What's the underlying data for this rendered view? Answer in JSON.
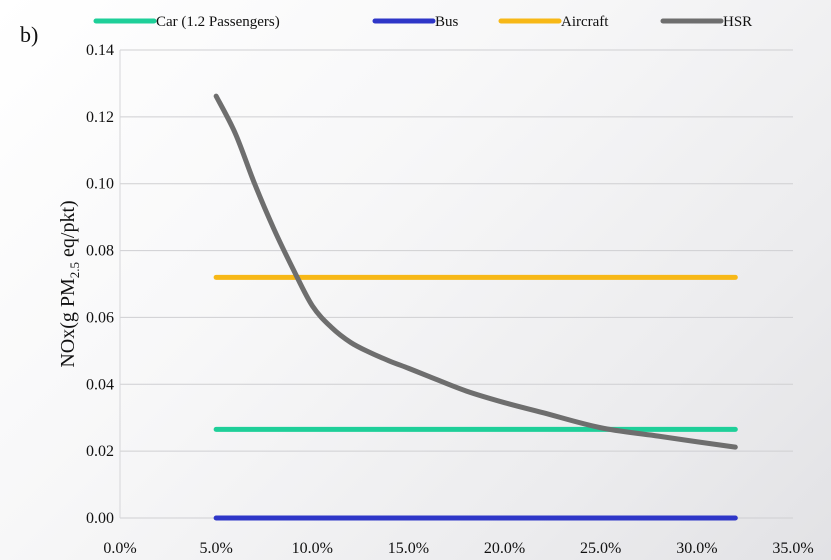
{
  "panel_label": "b)",
  "chart_data": {
    "type": "line",
    "ylabel_parts": [
      "NOx(g PM",
      "2.5",
      " eq/pkt)"
    ],
    "x_ticks": [
      "0.0%",
      "5.0%",
      "10.0%",
      "15.0%",
      "20.0%",
      "25.0%",
      "30.0%",
      "35.0%"
    ],
    "y_ticks": [
      "0.00",
      "0.02",
      "0.04",
      "0.06",
      "0.08",
      "0.10",
      "0.12",
      "0.14"
    ],
    "xlim": [
      0,
      35
    ],
    "ylim": [
      0,
      0.14
    ],
    "grid": "horizontal",
    "legend_position": "top",
    "series": [
      {
        "name": "Car (1.2 Passengers)",
        "color": "#1ecf99",
        "x": [
          5,
          32
        ],
        "y": [
          0.0265,
          0.0265
        ]
      },
      {
        "name": "Bus",
        "color": "#2e36c8",
        "x": [
          5,
          32
        ],
        "y": [
          0.0,
          0.0
        ]
      },
      {
        "name": "Aircraft",
        "color": "#f7b817",
        "x": [
          5,
          32
        ],
        "y": [
          0.072,
          0.072
        ]
      },
      {
        "name": "HSR",
        "color": "#6e6e6e",
        "x": [
          5,
          6,
          7,
          8,
          9,
          10,
          11,
          12,
          13,
          14,
          15,
          16,
          18,
          20,
          22,
          25,
          28,
          30,
          32
        ],
        "y": [
          0.1262,
          0.115,
          0.1,
          0.0865,
          0.0745,
          0.0635,
          0.057,
          0.0525,
          0.0495,
          0.047,
          0.0448,
          0.0425,
          0.038,
          0.0345,
          0.0315,
          0.027,
          0.0245,
          0.0228,
          0.0212
        ]
      }
    ]
  }
}
